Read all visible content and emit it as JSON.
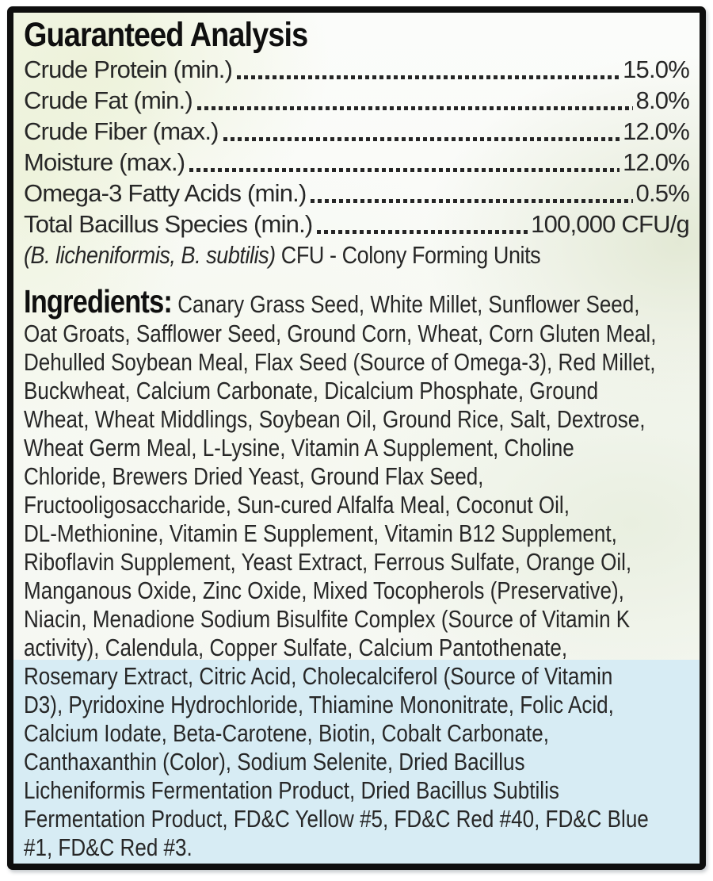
{
  "guaranteed_analysis": {
    "title": "Guaranteed Analysis",
    "rows": [
      {
        "name": "Crude Protein (min.) ",
        "value": "15.0%"
      },
      {
        "name": "Crude Fat (min.)",
        "value": "8.0%"
      },
      {
        "name": "Crude Fiber (max.) ",
        "value": "12.0%"
      },
      {
        "name": "Moisture (max.) ",
        "value": "12.0%"
      },
      {
        "name": "Omega-3 Fatty Acids (min.) ",
        "value": "0.5%"
      },
      {
        "name": "Total Bacillus Species (min.)",
        "value": "100,000 CFU/g"
      }
    ],
    "note_italic": "(B. licheniformis, B. subtilis)",
    "note_rest": " CFU - Colony Forming Units"
  },
  "ingredients": {
    "heading": "Ingredients:",
    "lines": [
      "Canary Grass Seed, White Millet, Sunflower Seed,",
      "Oat Groats, Safflower Seed, Ground Corn, Wheat, Corn Gluten Meal,",
      "Dehulled Soybean Meal, Flax Seed (Source of Omega-3), Red Millet,",
      "Buckwheat, Calcium Carbonate, Dicalcium Phosphate, Ground",
      "Wheat, Wheat Middlings, Soybean Oil, Ground Rice, Salt, Dextrose,",
      "Wheat Germ Meal, L-Lysine, Vitamin A Supplement, Choline",
      "Chloride, Brewers Dried Yeast, Ground Flax Seed,",
      "Fructooligosaccharide, Sun-cured Alfalfa Meal, Coconut Oil,",
      "DL-Methionine, Vitamin E Supplement, Vitamin B12 Supplement,",
      "Riboflavin Supplement, Yeast Extract, Ferrous Sulfate, Orange Oil,",
      "Manganous Oxide, Zinc Oxide, Mixed Tocopherols (Preservative),",
      "Niacin, Menadione Sodium Bisulfite Complex (Source of Vitamin K",
      "activity), Calendula, Copper Sulfate, Calcium Pantothenate,",
      "Rosemary Extract, Citric Acid, Cholecalciferol (Source of Vitamin",
      "D3), Pyridoxine Hydrochloride, Thiamine Mononitrate, Folic Acid,",
      "Calcium Iodate, Beta-Carotene, Biotin, Cobalt Carbonate,",
      "Canthaxanthin (Color), Sodium Selenite, Dried Bacillus",
      "Licheniformis Fermentation Product, Dried Bacillus Subtilis",
      "Fermentation Product, FD&C Yellow #5, FD&C Red #40, FD&C Blue",
      "#1, FD&C Red #3."
    ],
    "blue_band_start_line": 14
  },
  "colors": {
    "border": "#0e0e0e",
    "body_text": "#272727",
    "heading_text": "#0f0f0f",
    "blue_band": "#d7ecf4",
    "pale_green_tint": "#edf2da"
  }
}
